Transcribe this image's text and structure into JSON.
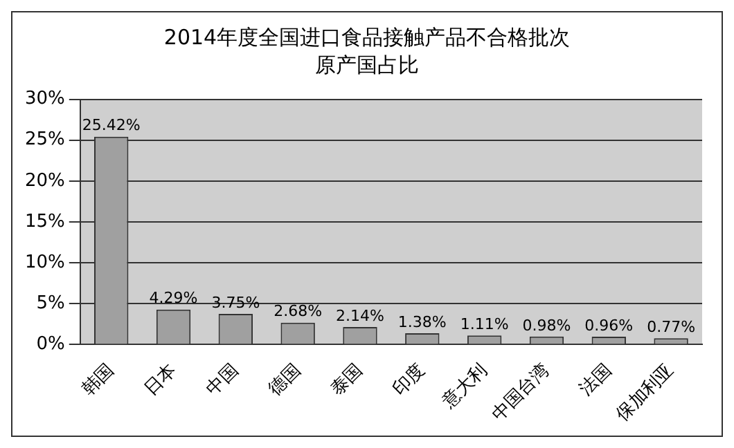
{
  "chart_data": {
    "type": "bar",
    "title": "2014年度全国进口食品接触产品不合格批次原产国占比",
    "categories": [
      "韩国",
      "日本",
      "中国",
      "德国",
      "泰国",
      "印度",
      "意大利",
      "中国台湾",
      "法国",
      "保加利亚"
    ],
    "values": [
      25.42,
      4.29,
      3.75,
      2.68,
      2.14,
      1.38,
      1.11,
      0.98,
      0.96,
      0.77
    ],
    "value_labels": [
      "25.42%",
      "4.29%",
      "3.75%",
      "2.68%",
      "2.14%",
      "1.38%",
      "1.11%",
      "0.98%",
      "0.96%",
      "0.77%"
    ],
    "color": "#a0a0a0",
    "ylim": [
      0,
      30
    ],
    "yticks": [
      {
        "value": 0,
        "label": "0%"
      },
      {
        "value": 5,
        "label": "5%"
      },
      {
        "value": 10,
        "label": "10%"
      },
      {
        "value": 15,
        "label": "15%"
      },
      {
        "value": 20,
        "label": "20%"
      },
      {
        "value": 25,
        "label": "25%"
      },
      {
        "value": 30,
        "label": "30%"
      }
    ],
    "grid": "y",
    "legend": false
  }
}
